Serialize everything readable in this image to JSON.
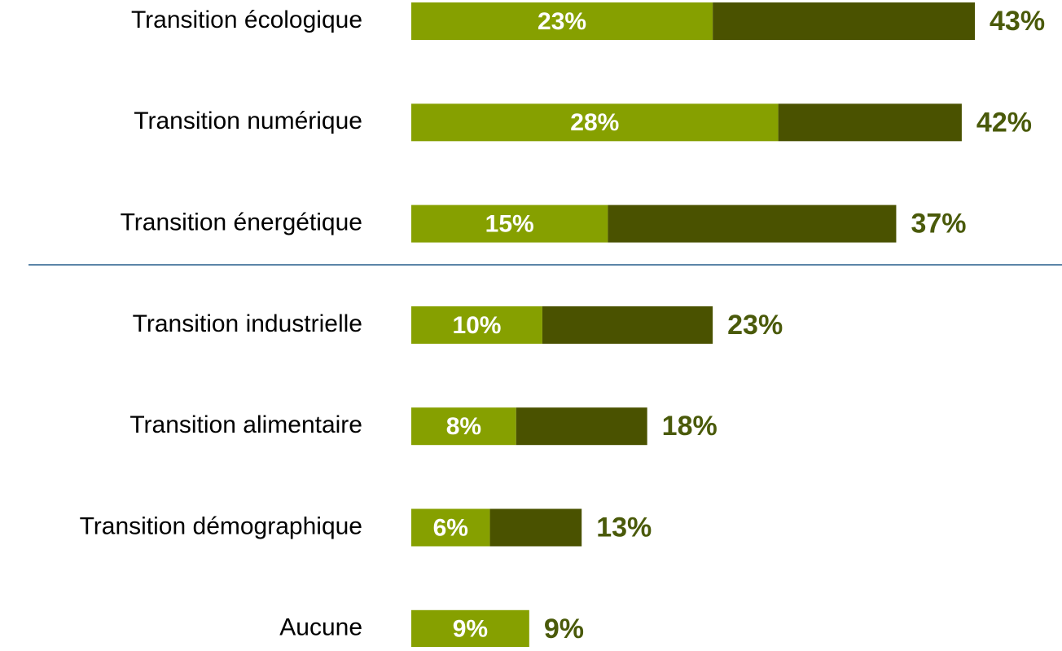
{
  "chart_data": {
    "type": "stacked_barh",
    "categories": [
      "Transition écologique",
      "Transition numérique",
      "Transition énergétique",
      "Transition industrielle",
      "Transition alimentaire",
      "Transition démographique",
      "Aucune"
    ],
    "series": [
      {
        "color": "#86a000",
        "values": [
          23,
          28,
          15,
          10,
          8,
          6,
          9
        ],
        "value_labels": [
          "23%",
          "28%",
          "15%",
          "10%",
          "8%",
          "6%",
          "9%"
        ]
      },
      {
        "color": "#4a5200",
        "values": [
          20,
          14,
          22,
          13,
          10,
          7,
          0
        ]
      }
    ],
    "totals": [
      43,
      42,
      37,
      23,
      18,
      13,
      9
    ],
    "total_labels": [
      "43%",
      "42%",
      "37%",
      "23%",
      "18%",
      "13%",
      "9%"
    ],
    "xlim": [
      0,
      43
    ]
  }
}
